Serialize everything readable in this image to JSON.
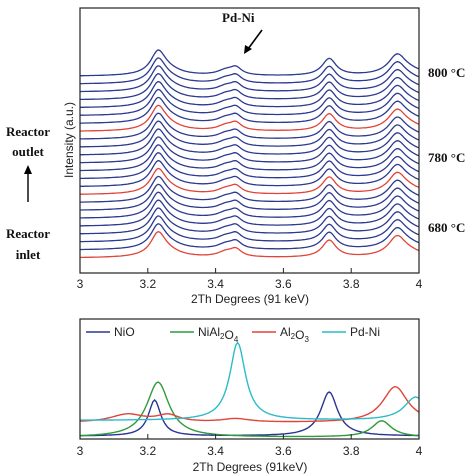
{
  "colors": {
    "blue_trace": "#2c3a8f",
    "red_trace": "#e0443a",
    "NiO": "#2a3592",
    "NiAl2O4": "#2f9a3a",
    "Al2O3": "#e0443a",
    "Pd-Ni": "#2bbcc8"
  },
  "side_labels": {
    "reactor_outlet_line1": "Reactor",
    "reactor_outlet_line2": "outlet",
    "reactor_inlet_line1": "Reactor",
    "reactor_inlet_line2": "inlet",
    "arrow": "up-arrow"
  },
  "chart_data": [
    {
      "type": "line",
      "panel": "top",
      "xlabel": "2Th Degrees (91 keV)",
      "ylabel": "Intensity (a.u.)",
      "xlim": [
        3,
        4
      ],
      "x_ticks": [
        "3",
        "3.2",
        "3.4",
        "3.6",
        "3.8",
        "4"
      ],
      "annotation": "Pd-Ni",
      "annotation_x": 3.46,
      "temperature_labels": [
        "800 °C",
        "780 °C",
        "680 °C"
      ],
      "stack": {
        "num_traces": 24,
        "red_trace_indices": [
          0,
          8,
          16
        ],
        "pattern": {
          "baseline": 1.0,
          "peaks": [
            {
              "x": 3.23,
              "height": 2.0,
              "width": 0.025
            },
            {
              "x": 3.25,
              "height": 0.7,
              "width": 0.05
            },
            {
              "x": 3.46,
              "height": 0.7,
              "width": 0.02
            },
            {
              "x": 3.43,
              "height": 0.5,
              "width": 0.03
            },
            {
              "x": 3.735,
              "height": 1.7,
              "width": 0.025
            },
            {
              "x": 3.935,
              "height": 1.7,
              "width": 0.03
            },
            {
              "x": 3.96,
              "height": 0.6,
              "width": 0.06
            }
          ]
        }
      }
    },
    {
      "type": "line",
      "panel": "bottom",
      "xlabel": "2Th Degrees (91keV)",
      "xlim": [
        3,
        4
      ],
      "x_ticks": [
        "3",
        "3.2",
        "3.4",
        "3.6",
        "3.8",
        "4"
      ],
      "legend_position": "top",
      "series": [
        {
          "name": "NiO",
          "color_key": "NiO",
          "baseline": 0.05,
          "peaks": [
            {
              "x": 3.22,
              "height": 0.62,
              "width": 0.022
            },
            {
              "x": 3.735,
              "height": 0.76,
              "width": 0.03
            }
          ]
        },
        {
          "name": "NiAl2O4",
          "color_key": "NiAl2O4",
          "baseline": 0.03,
          "peaks": [
            {
              "x": 3.23,
              "height": 0.95,
              "width": 0.04
            },
            {
              "x": 3.89,
              "height": 0.28,
              "width": 0.035
            }
          ]
        },
        {
          "name": "Al2O3",
          "color_key": "Al2O3",
          "baseline": 0.28,
          "peaks": [
            {
              "x": 3.14,
              "height": 0.14,
              "width": 0.06
            },
            {
              "x": 3.26,
              "height": 0.12,
              "width": 0.04
            },
            {
              "x": 3.46,
              "height": 0.06,
              "width": 0.05
            },
            {
              "x": 3.93,
              "height": 0.62,
              "width": 0.045
            }
          ]
        },
        {
          "name": "Pd-Ni",
          "color_key": "Pd-Ni",
          "baseline": 0.32,
          "peaks": [
            {
              "x": 3.465,
              "height": 1.34,
              "width": 0.028
            },
            {
              "x": 3.99,
              "height": 0.4,
              "width": 0.04
            }
          ]
        }
      ]
    }
  ]
}
